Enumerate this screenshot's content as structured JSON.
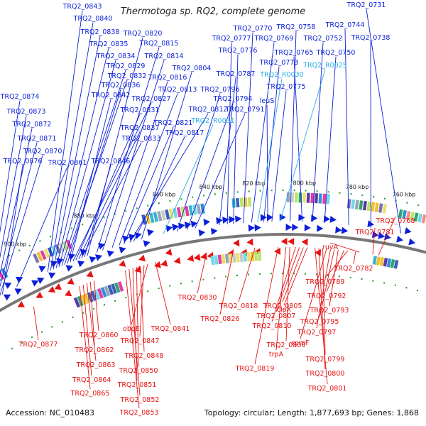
{
  "title": "Thermotoga sp. RQ2, complete genome",
  "footer": {
    "accession": "Accession: NC_010483",
    "topology": "Topology: circular; Length: 1,877,693 bp; Genes: 1,868"
  },
  "colors": {
    "forward": "#0a1fd9",
    "reverse": "#e61212",
    "rna": "#29aee6",
    "backbone": "#777777"
  },
  "ticks": [
    "760 kbp",
    "780 kbp",
    "800 kbp",
    "820 kbp",
    "840 kbp",
    "860 kbp",
    "880 kbp",
    "900 kbp"
  ],
  "labels_blue": [
    "TRQ2_0843",
    "TRQ2_0840",
    "TRQ2_0838",
    "TRQ2_0835",
    "TRQ2_0834",
    "TRQ2_0829",
    "TRQ2_0832",
    "TRQ2_0836",
    "TRQ2_0842",
    "TRQ2_0827",
    "TRQ2_0831",
    "TRQ2_0837",
    "TRQ2_0833",
    "TRQ2_0846",
    "TRQ2_0820",
    "TRQ2_0815",
    "TRQ2_0814",
    "TRQ2_0816",
    "TRQ2_0813",
    "TRQ2_0812",
    "TRQ2_0821",
    "TRQ2_0817",
    "TRQ2_0804",
    "TRQ2_0796",
    "TRQ2_0794",
    "TRQ2_0791",
    "TRQ2_0787",
    "TRQ2_0777",
    "TRQ2_0776",
    "TRQ2_0770",
    "TRQ2_0769",
    "TRQ2_0773",
    "TRQ2_0775",
    "TRQ2_0758",
    "TRQ2_0765",
    "TRQ2_0752",
    "TRQ2_0750",
    "TRQ2_0744",
    "TRQ2_0738",
    "TRQ2_0731",
    "leuS",
    "TRQ2_0874",
    "TRQ2_0873",
    "TRQ2_0872",
    "TRQ2_0871",
    "TRQ2_0870",
    "TRQ2_0876",
    "TRQ2_0861"
  ],
  "labels_cyan": [
    "TRQ2_R0031",
    "TRQ2_R0030",
    "TRQ2_R0025"
  ],
  "labels_red": [
    "TRQ2_0768",
    "TRQ2_0781",
    "ruvA",
    "TRQ2_0782",
    "TRQ2_0789",
    "TRQ2_0792",
    "TRQ2_0793",
    "TRQ2_0795",
    "TRQ2_0797",
    "rpmF",
    "TRQ2_0799",
    "TRQ2_0800",
    "TRQ2_0801",
    "clpX",
    "TRQ2_0805",
    "TRQ2_0807",
    "TRQ2_0810",
    "TRQ2_0808",
    "trpA",
    "TRQ2_0819",
    "TRQ2_0818",
    "TRQ2_0826",
    "TRQ2_0830",
    "TRQ2_0841",
    "obgE",
    "TRQ2_0847",
    "TRQ2_0848",
    "TRQ2_0850",
    "TRQ2_0851",
    "TRQ2_0852",
    "TRQ2_0853",
    "TRQ2_0860",
    "TRQ2_0862",
    "TRQ2_0863",
    "TRQ2_0864",
    "TRQ2_0865",
    "TRQ2_0877"
  ]
}
